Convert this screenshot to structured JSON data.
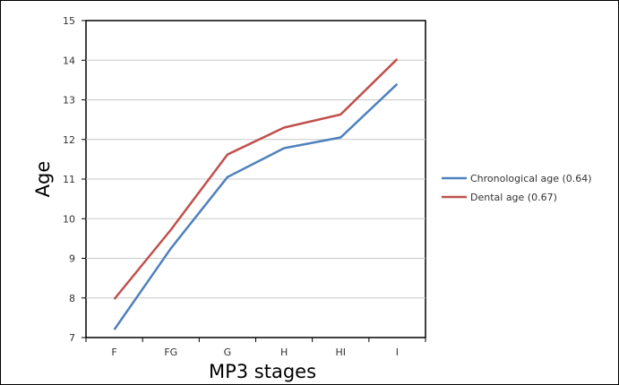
{
  "chart_data": {
    "type": "line",
    "title": "",
    "xlabel": "MP3 stages",
    "ylabel": "Age",
    "categories": [
      "F",
      "FG",
      "G",
      "H",
      "HI",
      "I"
    ],
    "ylim": [
      7,
      15
    ],
    "yticks": [
      7,
      8,
      9,
      10,
      11,
      12,
      13,
      14,
      15
    ],
    "grid": true,
    "legend_position": "right",
    "series": [
      {
        "name": "Chronological age (0.64)",
        "color": "#4f81bd",
        "values": [
          7.2,
          9.25,
          11.05,
          11.78,
          12.05,
          13.4
        ]
      },
      {
        "name": "Dental age (0.67)",
        "color": "#c0504d",
        "values": [
          7.97,
          9.72,
          11.62,
          12.3,
          12.63,
          14.03
        ]
      }
    ]
  }
}
